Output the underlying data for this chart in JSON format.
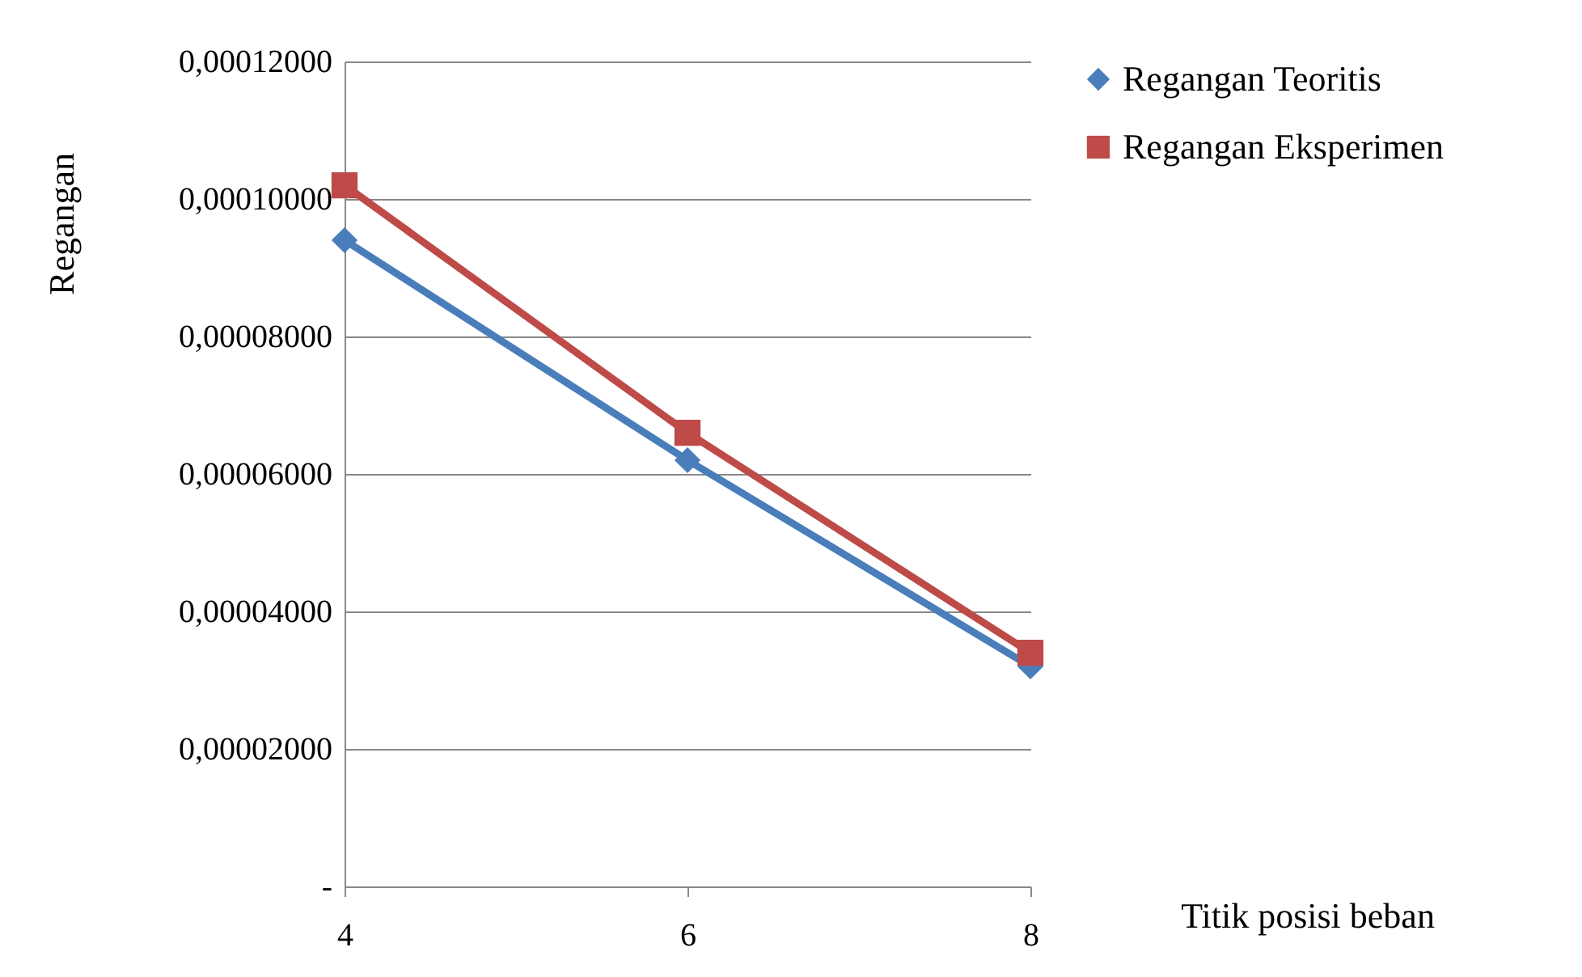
{
  "chart_data": {
    "type": "line",
    "xlabel": "Titik posisi beban",
    "ylabel": "Regangan",
    "categories": [
      "4",
      "6",
      "8"
    ],
    "series": [
      {
        "name": "Regangan Teoritis",
        "color": "#4a7ebb",
        "marker": "diamond",
        "values": [
          9.4e-05,
          6.2e-05,
          3.2e-05
        ]
      },
      {
        "name": "Regangan Eksperimen",
        "color": "#be4b48",
        "marker": "square",
        "values": [
          0.000102,
          6.6e-05,
          3.4e-05
        ]
      }
    ],
    "ylim": [
      0,
      0.00012
    ],
    "yticks": [
      {
        "value": 0,
        "label": "-"
      },
      {
        "value": 2e-05,
        "label": "0,00002000"
      },
      {
        "value": 4e-05,
        "label": "0,00004000"
      },
      {
        "value": 6e-05,
        "label": "0,00006000"
      },
      {
        "value": 8e-05,
        "label": "0,00008000"
      },
      {
        "value": 0.0001,
        "label": "0,00010000"
      },
      {
        "value": 0.00012,
        "label": "0,00012000"
      }
    ],
    "grid": "y",
    "legend": "right",
    "line_style": "solid"
  }
}
